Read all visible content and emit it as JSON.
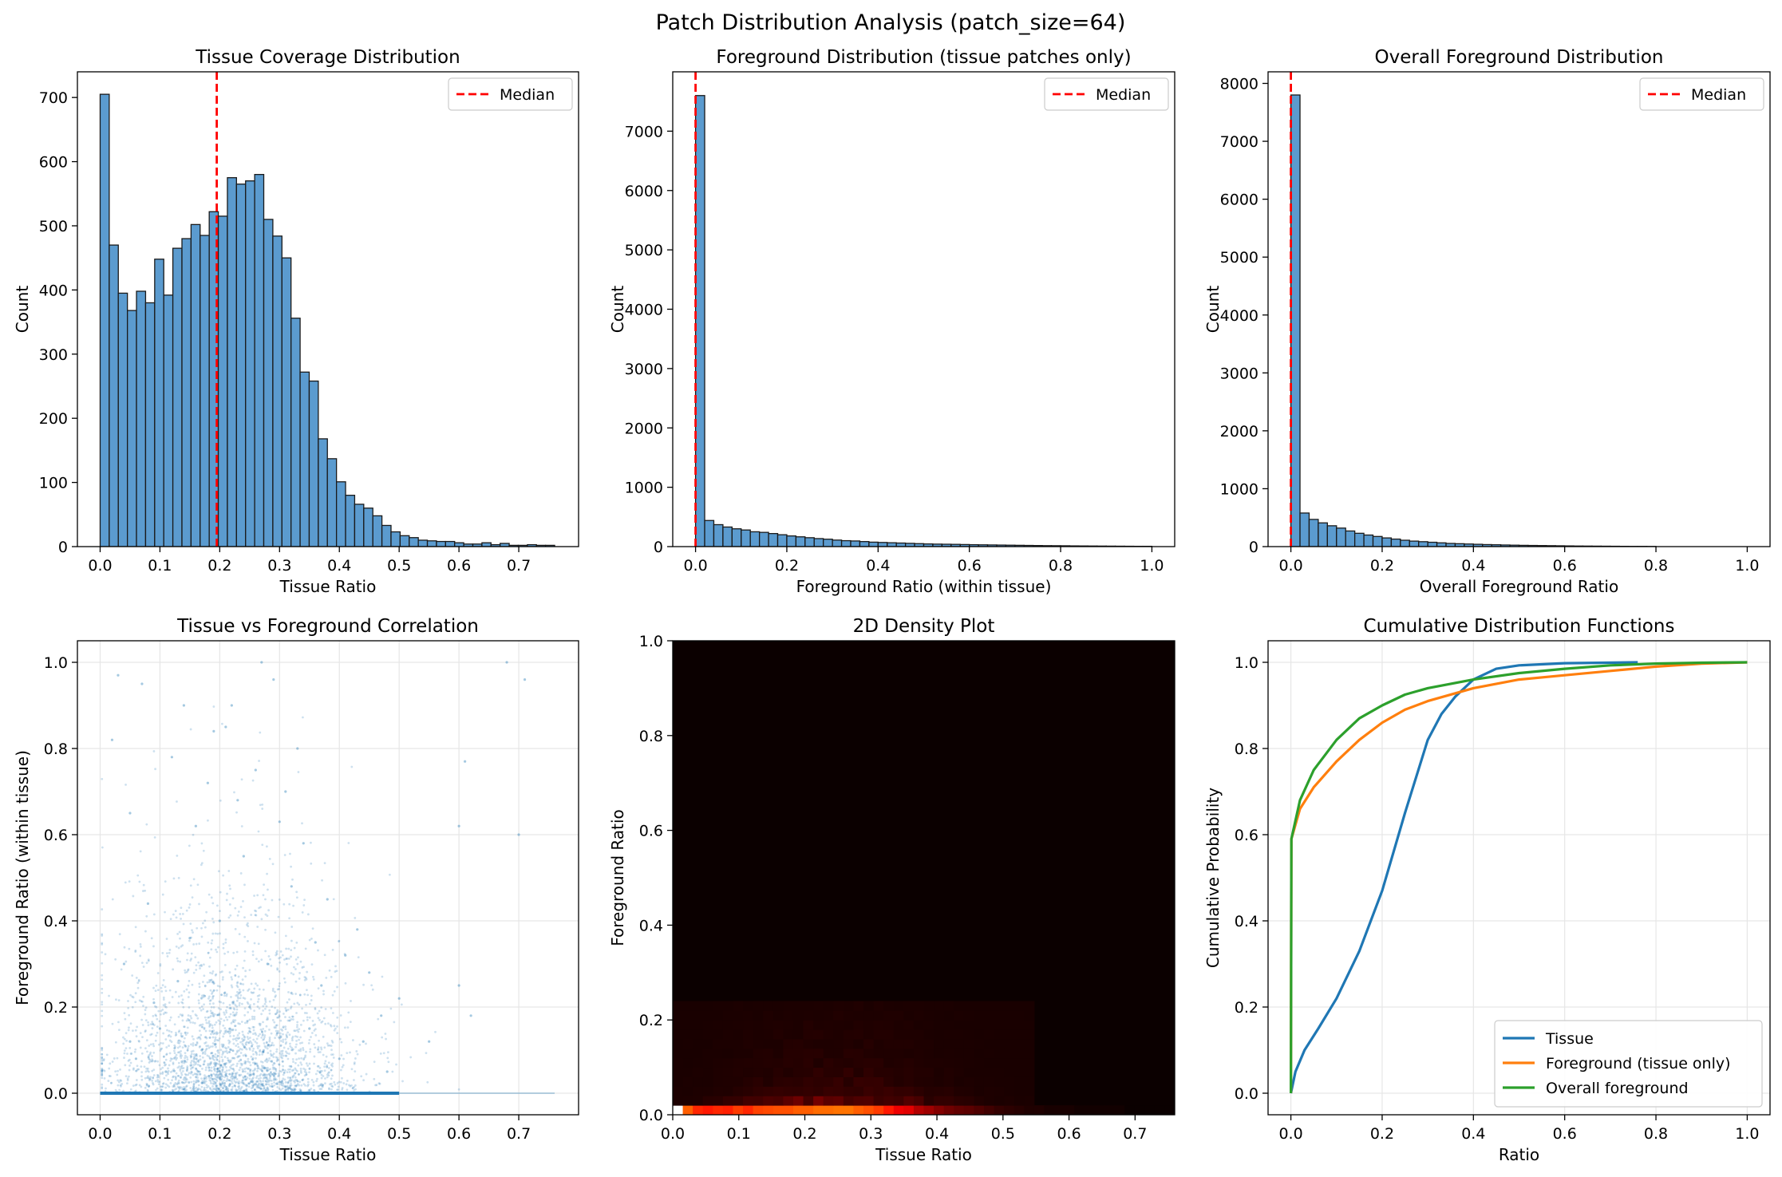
{
  "figure": {
    "title": "Patch Distribution Analysis (patch_size=64)"
  },
  "colors": {
    "hist_fill": "#5b9bcf",
    "hist_edge": "#1a1a1a",
    "median": "#ff0000",
    "tissue": "#1f77b4",
    "foreground": "#ff7f0e",
    "overall": "#2ca02c",
    "grid": "#e6e6e6"
  },
  "chart_data": [
    {
      "type": "bar",
      "title": "Tissue Coverage Distribution",
      "xlabel": "Tissue Ratio",
      "ylabel": "Count",
      "xlim": [
        -0.038,
        0.8
      ],
      "ylim": [
        0,
        740
      ],
      "xticks": [
        "0.0",
        "0.1",
        "0.2",
        "0.3",
        "0.4",
        "0.5",
        "0.6",
        "0.7"
      ],
      "yticks": [
        "0",
        "100",
        "200",
        "300",
        "400",
        "500",
        "600",
        "700"
      ],
      "bin_start": 0,
      "bin_width": 0.0152,
      "values": [
        705,
        470,
        395,
        368,
        398,
        380,
        448,
        392,
        465,
        480,
        502,
        485,
        522,
        515,
        575,
        565,
        570,
        580,
        510,
        484,
        450,
        356,
        272,
        258,
        168,
        137,
        101,
        80,
        66,
        60,
        48,
        33,
        23,
        17,
        14,
        10,
        9,
        8,
        8,
        6,
        4,
        4,
        6,
        3,
        5,
        2,
        2,
        3,
        2,
        2
      ],
      "median": 0.195,
      "legend": {
        "entries": [
          "Median"
        ],
        "placement": "upper right"
      },
      "grid": false
    },
    {
      "type": "bar",
      "title": "Foreground Distribution (tissue patches only)",
      "xlabel": "Foreground Ratio (within tissue)",
      "ylabel": "Count",
      "xlim": [
        -0.05,
        1.05
      ],
      "ylim": [
        0,
        8000
      ],
      "xticks": [
        "0.0",
        "0.2",
        "0.4",
        "0.6",
        "0.8",
        "1.0"
      ],
      "yticks": [
        "0",
        "1000",
        "2000",
        "3000",
        "4000",
        "5000",
        "6000",
        "7000"
      ],
      "bin_start": 0,
      "bin_width": 0.02,
      "values": [
        7600,
        440,
        370,
        330,
        300,
        280,
        250,
        240,
        220,
        200,
        180,
        165,
        150,
        135,
        125,
        110,
        100,
        95,
        85,
        75,
        70,
        65,
        60,
        55,
        50,
        45,
        42,
        40,
        38,
        35,
        32,
        30,
        28,
        26,
        24,
        22,
        20,
        18,
        16,
        15,
        14,
        12,
        11,
        10,
        9,
        8,
        7,
        6,
        5,
        5
      ],
      "median": 0,
      "legend": {
        "entries": [
          "Median"
        ],
        "placement": "upper right"
      },
      "grid": false
    },
    {
      "type": "bar",
      "title": "Overall Foreground Distribution",
      "xlabel": "Overall Foreground Ratio",
      "ylabel": "Count",
      "xlim": [
        -0.05,
        1.05
      ],
      "ylim": [
        0,
        8200
      ],
      "xticks": [
        "0.0",
        "0.2",
        "0.4",
        "0.6",
        "0.8",
        "1.0"
      ],
      "yticks": [
        "0",
        "1000",
        "2000",
        "3000",
        "4000",
        "5000",
        "6000",
        "7000",
        "8000"
      ],
      "bin_start": 0,
      "bin_width": 0.02,
      "values": [
        7800,
        580,
        470,
        410,
        360,
        320,
        270,
        230,
        200,
        175,
        150,
        130,
        110,
        95,
        85,
        75,
        65,
        55,
        50,
        45,
        40,
        35,
        32,
        28,
        25,
        22,
        20,
        18,
        16,
        14,
        12,
        10,
        9,
        8,
        7,
        6,
        5,
        4,
        4,
        3,
        0,
        0,
        0,
        0,
        0,
        0,
        0,
        0,
        0,
        0
      ],
      "median": 0,
      "legend": {
        "entries": [
          "Median"
        ],
        "placement": "upper right"
      },
      "grid": false
    },
    {
      "type": "scatter",
      "title": "Tissue vs Foreground Correlation",
      "xlabel": "Tissue Ratio",
      "ylabel": "Foreground Ratio (within tissue)",
      "xlim": [
        -0.038,
        0.8
      ],
      "ylim": [
        -0.05,
        1.05
      ],
      "xticks": [
        "0.0",
        "0.1",
        "0.2",
        "0.3",
        "0.4",
        "0.5",
        "0.6",
        "0.7"
      ],
      "yticks": [
        "0.0",
        "0.2",
        "0.4",
        "0.6",
        "0.8",
        "1.0"
      ],
      "baseline": {
        "y": 0,
        "x_range": [
          0,
          0.5
        ],
        "tail_x_max": 0.76
      },
      "points": [
        [
          0.02,
          0.82
        ],
        [
          0.03,
          0.97
        ],
        [
          0.05,
          0.65
        ],
        [
          0.07,
          0.95
        ],
        [
          0.08,
          0.44
        ],
        [
          0.12,
          0.78
        ],
        [
          0.14,
          0.9
        ],
        [
          0.16,
          0.62
        ],
        [
          0.18,
          0.72
        ],
        [
          0.19,
          0.84
        ],
        [
          0.21,
          0.85
        ],
        [
          0.22,
          0.9
        ],
        [
          0.23,
          0.68
        ],
        [
          0.24,
          0.55
        ],
        [
          0.26,
          0.75
        ],
        [
          0.27,
          1.0
        ],
        [
          0.29,
          0.96
        ],
        [
          0.3,
          0.63
        ],
        [
          0.31,
          0.7
        ],
        [
          0.32,
          0.48
        ],
        [
          0.33,
          0.8
        ],
        [
          0.34,
          0.58
        ],
        [
          0.36,
          0.35
        ],
        [
          0.38,
          0.45
        ],
        [
          0.41,
          0.32
        ],
        [
          0.43,
          0.38
        ],
        [
          0.45,
          0.28
        ],
        [
          0.47,
          0.18
        ],
        [
          0.5,
          0.22
        ],
        [
          0.55,
          0.12
        ],
        [
          0.6,
          0.62
        ],
        [
          0.6,
          0.25
        ],
        [
          0.61,
          0.77
        ],
        [
          0.62,
          0.18
        ],
        [
          0.68,
          1.0
        ],
        [
          0.7,
          0.6
        ],
        [
          0.71,
          0.96
        ],
        [
          0.09,
          0.21
        ],
        [
          0.1,
          0.15
        ],
        [
          0.06,
          0.08
        ],
        [
          0.04,
          0.3
        ],
        [
          0.05,
          0.12
        ],
        [
          0.11,
          0.05
        ],
        [
          0.13,
          0.26
        ],
        [
          0.15,
          0.36
        ],
        [
          0.17,
          0.1
        ],
        [
          0.2,
          0.4
        ],
        [
          0.25,
          0.2
        ],
        [
          0.28,
          0.3
        ],
        [
          0.35,
          0.15
        ],
        [
          0.37,
          0.25
        ],
        [
          0.4,
          0.08
        ],
        [
          0.44,
          0.12
        ],
        [
          0.48,
          0.05
        ]
      ],
      "grid": true
    },
    {
      "type": "heatmap",
      "title": "2D Density Plot",
      "xlabel": "Tissue Ratio",
      "ylabel": "Foreground Ratio",
      "xlim": [
        0,
        0.76
      ],
      "ylim": [
        0,
        1
      ],
      "xticks": [
        "0.0",
        "0.1",
        "0.2",
        "0.3",
        "0.4",
        "0.5",
        "0.6",
        "0.7"
      ],
      "yticks": [
        "0.0",
        "0.2",
        "0.4",
        "0.6",
        "0.8",
        "1.0"
      ],
      "nx": 50,
      "ny": 50,
      "row0": [
        1.0,
        0.5,
        0.42,
        0.4,
        0.42,
        0.41,
        0.45,
        0.42,
        0.46,
        0.47,
        0.48,
        0.48,
        0.5,
        0.5,
        0.52,
        0.52,
        0.53,
        0.53,
        0.5,
        0.48,
        0.45,
        0.4,
        0.34,
        0.32,
        0.25,
        0.22,
        0.18,
        0.15,
        0.13,
        0.12,
        0.1,
        0.08,
        0.06,
        0.05,
        0.04,
        0.03,
        0.03,
        0.02,
        0.02,
        0.02,
        0.01,
        0.01,
        0.01,
        0.01,
        0.01,
        0.0,
        0.0,
        0.0,
        0.0,
        0.0
      ],
      "colormap": "hot",
      "grid": false
    },
    {
      "type": "line",
      "title": "Cumulative Distribution Functions",
      "xlabel": "Ratio",
      "ylabel": "Cumulative Probability",
      "xlim": [
        -0.05,
        1.05
      ],
      "ylim": [
        -0.05,
        1.05
      ],
      "xticks": [
        "0.0",
        "0.2",
        "0.4",
        "0.6",
        "0.8",
        "1.0"
      ],
      "yticks": [
        "0.0",
        "0.2",
        "0.4",
        "0.6",
        "0.8",
        "1.0"
      ],
      "series": [
        {
          "name": "Tissue",
          "x": [
            0,
            0.01,
            0.03,
            0.06,
            0.1,
            0.15,
            0.2,
            0.25,
            0.3,
            0.33,
            0.36,
            0.4,
            0.45,
            0.5,
            0.6,
            0.76
          ],
          "y": [
            0,
            0.05,
            0.1,
            0.15,
            0.22,
            0.33,
            0.47,
            0.65,
            0.82,
            0.88,
            0.92,
            0.96,
            0.985,
            0.993,
            0.998,
            1.0
          ]
        },
        {
          "name": "Foreground (tissue only)",
          "x": [
            0,
            0.001,
            0.02,
            0.05,
            0.1,
            0.15,
            0.2,
            0.25,
            0.3,
            0.4,
            0.5,
            0.6,
            0.7,
            0.8,
            0.9,
            1.0
          ],
          "y": [
            0,
            0.59,
            0.66,
            0.71,
            0.77,
            0.82,
            0.86,
            0.89,
            0.91,
            0.94,
            0.96,
            0.97,
            0.98,
            0.99,
            0.997,
            1.0
          ]
        },
        {
          "name": "Overall foreground",
          "x": [
            0,
            0.001,
            0.02,
            0.05,
            0.1,
            0.15,
            0.2,
            0.25,
            0.3,
            0.4,
            0.5,
            0.6,
            0.7,
            0.8,
            0.9,
            1.0
          ],
          "y": [
            0,
            0.59,
            0.68,
            0.75,
            0.82,
            0.87,
            0.9,
            0.925,
            0.94,
            0.96,
            0.975,
            0.985,
            0.993,
            0.997,
            0.999,
            1.0
          ]
        }
      ],
      "legend": {
        "placement": "lower right"
      },
      "grid": true
    }
  ]
}
